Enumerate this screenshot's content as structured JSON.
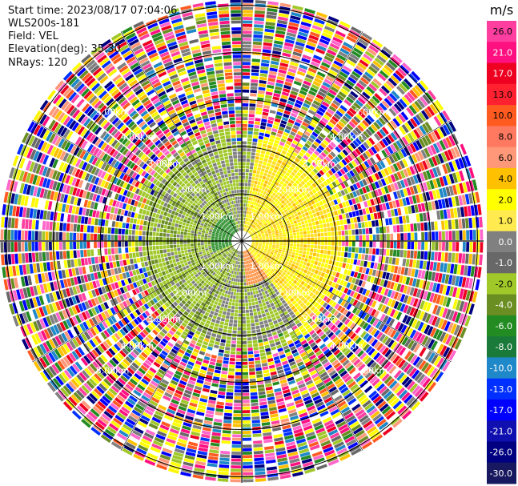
{
  "header": {
    "start_time": "Start time: 2023/08/17 07:04:06",
    "instrument": "WLS200s-181",
    "field": "Field: VEL",
    "elevation": "Elevation(deg): 35.30",
    "nrays": "NRays: 120"
  },
  "colorbar": {
    "unit": "m/s",
    "ticks": [
      "26.0",
      "21.0",
      "17.0",
      "13.0",
      "10.0",
      "8.0",
      "6.0",
      "4.0",
      "2.0",
      "1.0",
      "0.0",
      "-1.0",
      "-2.0",
      "-4.0",
      "-6.0",
      "-8.0",
      "-10.0",
      "-13.0",
      "-17.0",
      "-21.0",
      "-26.0",
      "-30.0"
    ],
    "colors": [
      "#ff3ea0",
      "#ff1080",
      "#ee0020",
      "#ff2030",
      "#ff5a20",
      "#ff7860",
      "#ff9878",
      "#ffc000",
      "#ffff00",
      "#ffea50",
      "#808080",
      "#686868",
      "#a0c828",
      "#6b8e23",
      "#228b22",
      "#1a7a3a",
      "#1e88c8",
      "#0030ff",
      "#0000ff",
      "#1010b0",
      "#000080",
      "#181860"
    ]
  },
  "chart_data": {
    "type": "ppi",
    "variable": "VEL",
    "unit": "m/s",
    "elevation_deg": 35.3,
    "nrays": 120,
    "range_rings_km": [
      0.5,
      1.0,
      1.5,
      2.0,
      2.5,
      3.0,
      3.5
    ],
    "ring_labels": [
      "1.00km",
      "1.00km",
      "1.00km",
      "1.00km",
      "2.00km",
      "2.00km",
      "2.00km",
      "2.00km",
      "3.00km",
      "3.00km",
      "3.00km",
      "3.00km",
      "4.00km",
      "4.00km",
      "4.00km",
      "4.00km",
      "5.00km",
      "5.00km",
      "5.00km",
      "5.00km"
    ],
    "colorbar_min": -30.0,
    "colorbar_max": 26.0,
    "valid_region": {
      "inner_radius_km": 2.3,
      "quadrant_NE": "positive 1-4 m/s (yellow)",
      "quadrant_W": "negative -2 to -4 m/s (green)",
      "outer_region": "noise (random colors)"
    }
  }
}
